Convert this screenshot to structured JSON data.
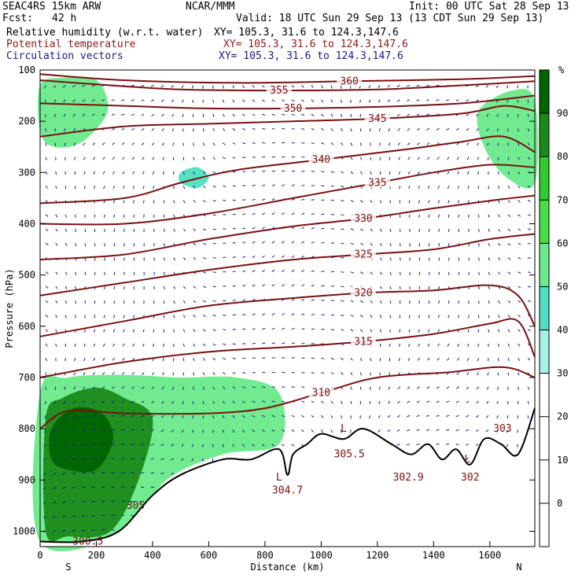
{
  "header": {
    "model": "SEAC4RS 15km ARW",
    "org": "NCAR/MMM",
    "init": "Init: 00 UTC Sat 28 Sep 13",
    "fcst_label": "Fcst:",
    "fcst_value": "42 h",
    "valid": "Valid: 18 UTC Sun 29 Sep 13 (13 CDT Sun 29 Sep 13)",
    "fields": [
      {
        "name": "Relative humidity (w.r.t. water)",
        "xy": "XY= 105.3, 31.6 to 124.3,147.6",
        "color": "#000000"
      },
      {
        "name": "Potential temperature",
        "xy": "XY= 105.3, 31.6 to 124.3,147.6",
        "color": "#8b1a1a"
      },
      {
        "name": "Circulation vectors",
        "xy": "XY= 105.3, 31.6 to 124.3,147.6",
        "color": "#1a1a8b"
      }
    ]
  },
  "chart_data": {
    "type": "heatmap",
    "xlabel": "Distance (km)",
    "ylabel": "Pressure (hPa)",
    "xlim": [
      0,
      1760
    ],
    "ylim": [
      1030,
      100
    ],
    "x_ticks": [
      0,
      200,
      400,
      600,
      800,
      1000,
      1200,
      1400,
      1600
    ],
    "y_ticks": [
      100,
      200,
      300,
      400,
      500,
      600,
      700,
      800,
      900,
      1000
    ],
    "x_end_labels": {
      "left": "S",
      "right": "N"
    },
    "colorbar": {
      "unit": "%",
      "levels": [
        90,
        80,
        70,
        60,
        50,
        40,
        30,
        20,
        10,
        0
      ],
      "colors": [
        "#006400",
        "#1a8a1a",
        "#2ecc2e",
        "#46e046",
        "#6aea8a",
        "#4ee0c0",
        "#a6f2e6",
        "#ffffff",
        "#ffffff",
        "#ffffff",
        "#ffffff"
      ]
    },
    "theta_contours": [
      {
        "value": 360,
        "label": "360",
        "points": [
          [
            0,
            108
          ],
          [
            300,
            120
          ],
          [
            700,
            125
          ],
          [
            1100,
            122
          ],
          [
            1500,
            118
          ],
          [
            1760,
            112
          ]
        ]
      },
      {
        "value": 355,
        "label": "355",
        "points": [
          [
            0,
            120
          ],
          [
            200,
            128
          ],
          [
            500,
            138
          ],
          [
            850,
            140
          ],
          [
            1200,
            138
          ],
          [
            1500,
            130
          ],
          [
            1760,
            122
          ]
        ]
      },
      {
        "value": 350,
        "label": "350",
        "points": [
          [
            0,
            165
          ],
          [
            300,
            170
          ],
          [
            600,
            175
          ],
          [
            900,
            175
          ],
          [
            1200,
            172
          ],
          [
            1500,
            165
          ],
          [
            1760,
            150
          ]
        ]
      },
      {
        "value": 345,
        "label": "345",
        "points": [
          [
            0,
            230
          ],
          [
            300,
            210
          ],
          [
            600,
            205
          ],
          [
            900,
            200
          ],
          [
            1200,
            195
          ],
          [
            1500,
            185
          ],
          [
            1650,
            170
          ],
          [
            1760,
            180
          ]
        ]
      },
      {
        "value": 340,
        "label": "340",
        "points": [
          [
            0,
            360
          ],
          [
            300,
            350
          ],
          [
            500,
            320
          ],
          [
            700,
            295
          ],
          [
            1000,
            275
          ],
          [
            1300,
            255
          ],
          [
            1500,
            240
          ],
          [
            1650,
            230
          ],
          [
            1760,
            260
          ]
        ]
      },
      {
        "value": 335,
        "label": "335",
        "points": [
          [
            0,
            400
          ],
          [
            300,
            400
          ],
          [
            600,
            380
          ],
          [
            900,
            350
          ],
          [
            1200,
            320
          ],
          [
            1400,
            300
          ],
          [
            1600,
            285
          ],
          [
            1760,
            290
          ]
        ]
      },
      {
        "value": 330,
        "label": "330",
        "points": [
          [
            0,
            470
          ],
          [
            300,
            460
          ],
          [
            600,
            430
          ],
          [
            900,
            405
          ],
          [
            1150,
            390
          ],
          [
            1400,
            370
          ],
          [
            1600,
            355
          ],
          [
            1760,
            345
          ]
        ]
      },
      {
        "value": 325,
        "label": "325",
        "points": [
          [
            0,
            540
          ],
          [
            300,
            515
          ],
          [
            600,
            490
          ],
          [
            900,
            470
          ],
          [
            1150,
            460
          ],
          [
            1400,
            450
          ],
          [
            1600,
            430
          ],
          [
            1760,
            420
          ]
        ]
      },
      {
        "value": 320,
        "label": "320",
        "points": [
          [
            0,
            620
          ],
          [
            300,
            590
          ],
          [
            600,
            560
          ],
          [
            900,
            545
          ],
          [
            1150,
            535
          ],
          [
            1400,
            530
          ],
          [
            1600,
            520
          ],
          [
            1700,
            540
          ],
          [
            1760,
            600
          ]
        ]
      },
      {
        "value": 315,
        "label": "315",
        "points": [
          [
            0,
            700
          ],
          [
            300,
            670
          ],
          [
            600,
            650
          ],
          [
            900,
            640
          ],
          [
            1150,
            630
          ],
          [
            1400,
            615
          ],
          [
            1600,
            595
          ],
          [
            1700,
            590
          ],
          [
            1760,
            660
          ]
        ]
      },
      {
        "value": 310,
        "label": "310",
        "points": [
          [
            0,
            800
          ],
          [
            100,
            765
          ],
          [
            300,
            770
          ],
          [
            600,
            770
          ],
          [
            800,
            760
          ],
          [
            1000,
            730
          ],
          [
            1200,
            700
          ],
          [
            1450,
            690
          ],
          [
            1650,
            680
          ],
          [
            1760,
            700
          ]
        ]
      }
    ],
    "contour_labels_extra": [
      {
        "label": "305",
        "x": 340,
        "y": 950
      },
      {
        "label": "300.5",
        "x": 170,
        "y": 1020
      },
      {
        "label": "304.7",
        "x": 880,
        "y": 920
      },
      {
        "label": "305.5",
        "x": 1100,
        "y": 850
      },
      {
        "label": "302.9",
        "x": 1310,
        "y": 895
      },
      {
        "label": "302",
        "x": 1530,
        "y": 895
      },
      {
        "label": "303",
        "x": 1645,
        "y": 800
      }
    ],
    "lows": [
      {
        "label": "L",
        "x": 850,
        "y": 895
      },
      {
        "label": "L",
        "x": 1080,
        "y": 800
      },
      {
        "label": "L",
        "x": 1520,
        "y": 860
      }
    ],
    "terrain": [
      [
        0,
        1020
      ],
      [
        150,
        1020
      ],
      [
        280,
        1000
      ],
      [
        400,
        930
      ],
      [
        500,
        890
      ],
      [
        650,
        860
      ],
      [
        750,
        860
      ],
      [
        850,
        840
      ],
      [
        880,
        890
      ],
      [
        900,
        850
      ],
      [
        950,
        830
      ],
      [
        1000,
        810
      ],
      [
        1080,
        820
      ],
      [
        1150,
        800
      ],
      [
        1250,
        830
      ],
      [
        1320,
        850
      ],
      [
        1380,
        830
      ],
      [
        1430,
        860
      ],
      [
        1480,
        840
      ],
      [
        1530,
        870
      ],
      [
        1580,
        820
      ],
      [
        1640,
        830
      ],
      [
        1700,
        850
      ],
      [
        1760,
        760
      ]
    ],
    "rh_regions": [
      {
        "level": 80,
        "points": [
          [
            20,
            780
          ],
          [
            80,
            740
          ],
          [
            200,
            720
          ],
          [
            300,
            740
          ],
          [
            400,
            780
          ],
          [
            350,
            900
          ],
          [
            250,
            1000
          ],
          [
            100,
            1010
          ],
          [
            20,
            1000
          ]
        ]
      },
      {
        "level": 90,
        "points": [
          [
            40,
            800
          ],
          [
            120,
            760
          ],
          [
            220,
            770
          ],
          [
            260,
            820
          ],
          [
            200,
            880
          ],
          [
            100,
            880
          ],
          [
            40,
            860
          ]
        ]
      },
      {
        "level": 50,
        "points": [
          [
            0,
            730
          ],
          [
            100,
            700
          ],
          [
            300,
            695
          ],
          [
            500,
            700
          ],
          [
            700,
            700
          ],
          [
            850,
            730
          ],
          [
            850,
            830
          ],
          [
            650,
            850
          ],
          [
            450,
            900
          ],
          [
            300,
            1000
          ],
          [
            0,
            1020
          ]
        ]
      },
      {
        "level": 50,
        "points": [
          [
            0,
            130
          ],
          [
            80,
            115
          ],
          [
            200,
            120
          ],
          [
            240,
            180
          ],
          [
            150,
            240
          ],
          [
            50,
            250
          ],
          [
            0,
            220
          ]
        ]
      },
      {
        "level": 50,
        "points": [
          [
            1560,
            180
          ],
          [
            1680,
            140
          ],
          [
            1760,
            160
          ],
          [
            1760,
            320
          ],
          [
            1660,
            310
          ],
          [
            1580,
            250
          ]
        ]
      },
      {
        "level": 40,
        "points": [
          [
            500,
            300
          ],
          [
            560,
            290
          ],
          [
            600,
            310
          ],
          [
            560,
            330
          ],
          [
            500,
            320
          ]
        ]
      }
    ]
  }
}
